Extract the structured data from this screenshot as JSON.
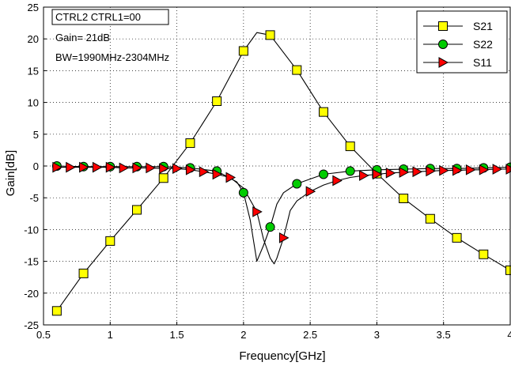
{
  "chart_data": {
    "type": "line",
    "title": "",
    "xlabel": "Frequency[GHz]",
    "ylabel": "Gain[dB]",
    "xlim": [
      0.5,
      4
    ],
    "ylim": [
      -25,
      25
    ],
    "xticks": [
      0.5,
      1,
      1.5,
      2,
      2.5,
      3,
      3.5,
      4
    ],
    "xtick_labels": [
      "0.5",
      "1",
      "1.5",
      "2",
      "2.5",
      "3",
      "3.5",
      "4"
    ],
    "yticks": [
      -25,
      -20,
      -15,
      -10,
      -5,
      0,
      5,
      10,
      15,
      20,
      25
    ],
    "ytick_labels": [
      "-25",
      "-20",
      "-15",
      "-10",
      "-5",
      "0",
      "5",
      "10",
      "15",
      "20",
      "25"
    ],
    "grid": true,
    "legend_position": "top-right",
    "annotations": {
      "mode": "CTRL2 CTRL1=00",
      "gain": "Gain= 21dB",
      "bw": "BW=1990MHz-2304MHz"
    },
    "series": [
      {
        "name": "S21",
        "color": "#ffff00",
        "marker": "square",
        "x": [
          0.6,
          0.8,
          1.0,
          1.2,
          1.4,
          1.6,
          1.8,
          2.0,
          2.1,
          2.2,
          2.4,
          2.6,
          2.8,
          3.0,
          3.2,
          3.4,
          3.6,
          3.8,
          4.0
        ],
        "values": [
          -22.8,
          -16.9,
          -11.8,
          -6.9,
          -1.9,
          3.6,
          10.2,
          18.1,
          21.0,
          20.6,
          15.1,
          8.5,
          3.1,
          -1.2,
          -5.1,
          -8.3,
          -11.3,
          -13.9,
          -16.4
        ],
        "marker_x": [
          0.6,
          0.8,
          1.0,
          1.2,
          1.4,
          1.6,
          1.8,
          2.0,
          2.2,
          2.4,
          2.6,
          2.8,
          3.0,
          3.2,
          3.4,
          3.6,
          3.8,
          4.0
        ]
      },
      {
        "name": "S22",
        "color": "#00cc00",
        "marker": "circle",
        "x": [
          0.6,
          0.8,
          1.0,
          1.2,
          1.4,
          1.6,
          1.8,
          1.95,
          2.0,
          2.05,
          2.1,
          2.15,
          2.2,
          2.25,
          2.3,
          2.4,
          2.6,
          2.8,
          3.0,
          3.2,
          3.4,
          3.6,
          3.8,
          4.0
        ],
        "values": [
          0,
          -0.1,
          -0.1,
          -0.1,
          -0.1,
          -0.3,
          -0.8,
          -2.5,
          -4.2,
          -8.5,
          -15.0,
          -12.5,
          -9.6,
          -6.0,
          -4.2,
          -2.8,
          -1.3,
          -0.8,
          -0.6,
          -0.5,
          -0.4,
          -0.4,
          -0.3,
          -0.2
        ],
        "marker_x": [
          0.6,
          0.8,
          1.0,
          1.2,
          1.4,
          1.6,
          1.8,
          2.0,
          2.2,
          2.4,
          2.6,
          2.8,
          3.0,
          3.2,
          3.4,
          3.6,
          3.8,
          4.0
        ]
      },
      {
        "name": "S11",
        "color": "#ff0000",
        "marker": "triangle-right",
        "x": [
          0.6,
          0.7,
          0.8,
          0.9,
          1.0,
          1.1,
          1.2,
          1.3,
          1.4,
          1.5,
          1.6,
          1.7,
          1.8,
          1.9,
          2.0,
          2.1,
          2.15,
          2.2,
          2.23,
          2.25,
          2.3,
          2.35,
          2.4,
          2.5,
          2.6,
          2.7,
          2.8,
          2.9,
          3.0,
          3.1,
          3.2,
          3.3,
          3.4,
          3.5,
          3.6,
          3.7,
          3.8,
          3.9,
          4.0
        ],
        "values": [
          -0.2,
          -0.2,
          -0.2,
          -0.2,
          -0.2,
          -0.3,
          -0.3,
          -0.3,
          -0.4,
          -0.4,
          -0.6,
          -0.9,
          -1.3,
          -1.8,
          -3.5,
          -7.2,
          -11.5,
          -14.5,
          -15.4,
          -14.5,
          -11.3,
          -7.0,
          -5.5,
          -4.0,
          -3.0,
          -2.3,
          -1.8,
          -1.5,
          -1.3,
          -1.1,
          -1.0,
          -0.9,
          -0.8,
          -0.7,
          -0.7,
          -0.6,
          -0.6,
          -0.5,
          -0.5
        ],
        "marker_x": [
          0.6,
          0.7,
          0.8,
          0.9,
          1.0,
          1.1,
          1.2,
          1.3,
          1.4,
          1.5,
          1.6,
          1.7,
          1.8,
          1.9,
          2.1,
          2.3,
          2.5,
          2.7,
          2.9,
          3.0,
          3.1,
          3.2,
          3.3,
          3.4,
          3.5,
          3.6,
          3.7,
          3.8,
          3.9,
          4.0
        ]
      }
    ]
  }
}
